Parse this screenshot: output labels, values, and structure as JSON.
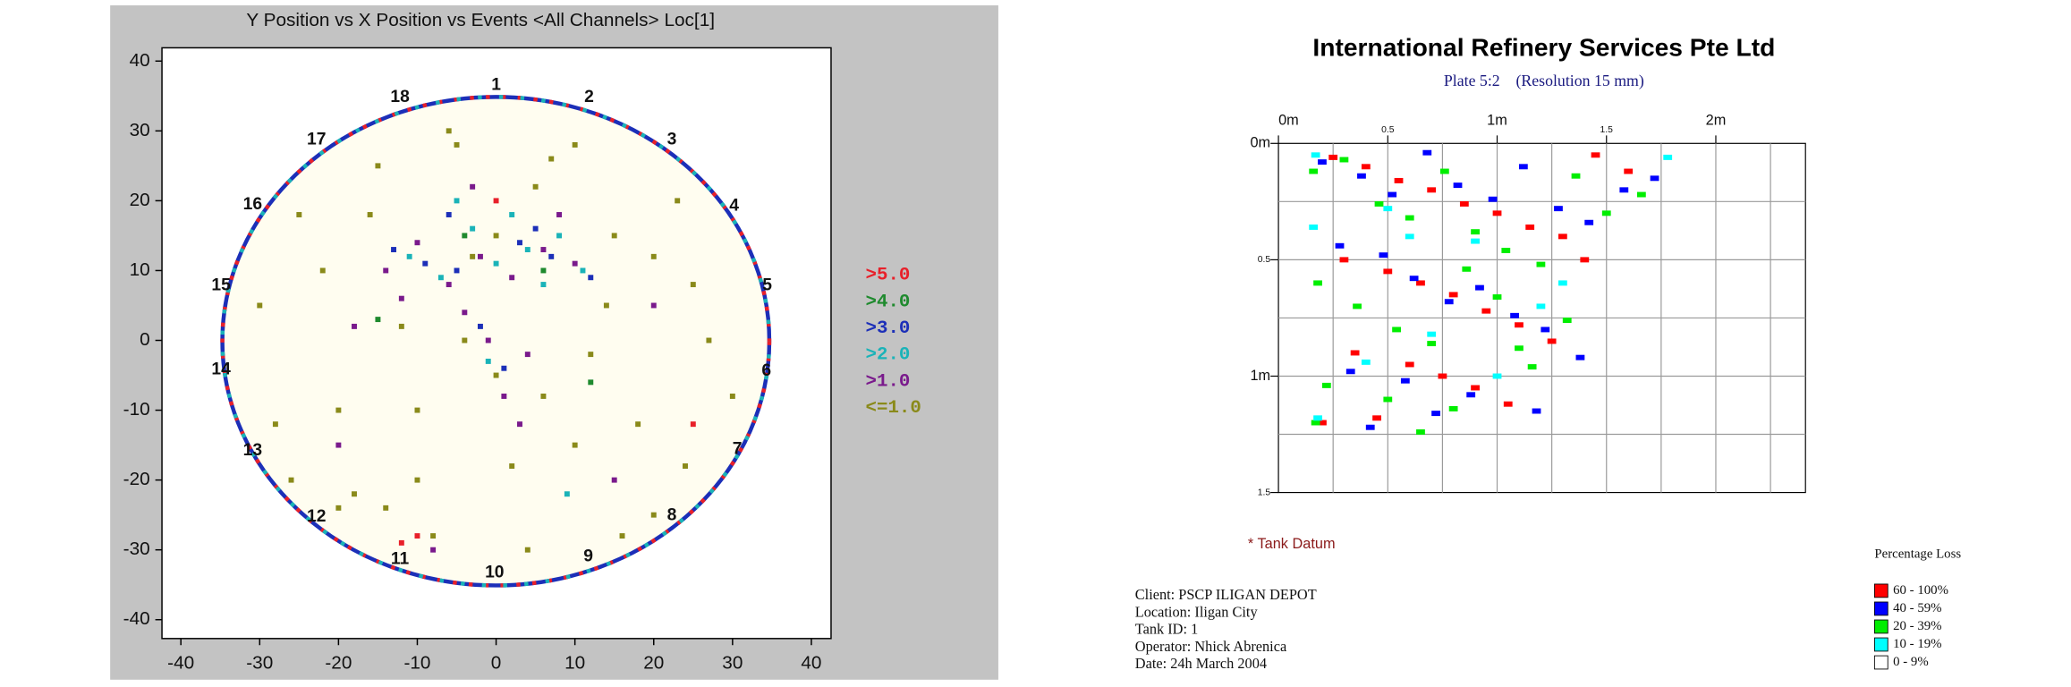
{
  "chart_data": [
    {
      "type": "scatter",
      "title": "Y Position vs X Position vs Events <All Channels> Loc[1]",
      "xlim": [
        -42.4,
        42.5
      ],
      "ylim": [
        -42.7,
        41.9
      ],
      "xticks": [
        -40,
        -30,
        -20,
        -10,
        0,
        10,
        20,
        30,
        40
      ],
      "yticks": [
        -40,
        -30,
        -20,
        -10,
        0,
        10,
        20,
        30,
        40
      ],
      "series": [
        {
          "name": ">5.0",
          "color": "#e8202a",
          "x": [
            -10,
            -12,
            25,
            0
          ],
          "y": [
            -28,
            -29,
            -12,
            20
          ]
        },
        {
          "name": ">4.0",
          "color": "#1f8a2e",
          "x": [
            -4,
            6,
            -15,
            12
          ],
          "y": [
            15,
            10,
            3,
            -6
          ]
        },
        {
          "name": ">3.0",
          "color": "#1c2fb8",
          "x": [
            -13,
            -9,
            -5,
            3,
            7,
            12,
            -2,
            1,
            5,
            -6
          ],
          "y": [
            13,
            11,
            10,
            14,
            12,
            9,
            2,
            -4,
            16,
            18
          ]
        },
        {
          "name": ">2.0",
          "color": "#1ab3b8",
          "x": [
            -11,
            -7,
            -3,
            0,
            4,
            8,
            11,
            -5,
            2,
            6,
            -1,
            9
          ],
          "y": [
            12,
            9,
            16,
            11,
            13,
            15,
            10,
            20,
            18,
            8,
            -3,
            -22
          ]
        },
        {
          "name": ">1.0",
          "color": "#7a1a8c",
          "x": [
            -14,
            -10,
            -6,
            -2,
            2,
            6,
            10,
            -12,
            -4,
            4,
            -1,
            1,
            -20,
            15,
            -8,
            3,
            20,
            -18,
            8,
            -3
          ],
          "y": [
            10,
            14,
            8,
            12,
            9,
            13,
            11,
            6,
            4,
            -2,
            0,
            -8,
            -15,
            -20,
            -30,
            -12,
            5,
            2,
            18,
            22
          ]
        },
        {
          "name": "<=1.0",
          "color": "#8a8a1a",
          "x": [
            -30,
            -25,
            -20,
            -15,
            -10,
            -5,
            0,
            5,
            10,
            15,
            20,
            25,
            30,
            -28,
            -22,
            -18,
            -12,
            -8,
            -3,
            2,
            7,
            12,
            18,
            23,
            27,
            -26,
            -16,
            -6,
            4,
            14,
            24,
            -20,
            -10,
            0,
            10,
            20,
            -14,
            6,
            16,
            -4
          ],
          "y": [
            5,
            18,
            -10,
            25,
            -20,
            28,
            -5,
            22,
            -15,
            15,
            -25,
            8,
            -8,
            -12,
            10,
            -22,
            2,
            -28,
            12,
            -18,
            26,
            -2,
            -12,
            20,
            0,
            -20,
            18,
            30,
            -30,
            5,
            -18,
            -24,
            -10,
            15,
            28,
            12,
            -24,
            -8,
            -28,
            0
          ]
        }
      ],
      "annotations": [
        {
          "text": "1",
          "x": 0,
          "y": 36.5
        },
        {
          "text": "2",
          "x": 11.8,
          "y": 34.8
        },
        {
          "text": "3",
          "x": 22.3,
          "y": 28.7
        },
        {
          "text": "4",
          "x": 30.2,
          "y": 19.2
        },
        {
          "text": "5",
          "x": 34.4,
          "y": 7.8
        },
        {
          "text": "6",
          "x": 34.3,
          "y": -4.4
        },
        {
          "text": "7",
          "x": 30.6,
          "y": -15.6
        },
        {
          "text": "8",
          "x": 22.3,
          "y": -25.1
        },
        {
          "text": "9",
          "x": 11.7,
          "y": -31
        },
        {
          "text": "10",
          "x": -0.2,
          "y": -33.3
        },
        {
          "text": "11",
          "x": -12.2,
          "y": -31.4
        },
        {
          "text": "12",
          "x": -22.8,
          "y": -25.3
        },
        {
          "text": "13",
          "x": -30.9,
          "y": -15.8
        },
        {
          "text": "14",
          "x": -34.9,
          "y": -4.2
        },
        {
          "text": "15",
          "x": -34.9,
          "y": 7.8
        },
        {
          "text": "16",
          "x": -30.9,
          "y": 19.4
        },
        {
          "text": "17",
          "x": -22.8,
          "y": 28.7
        },
        {
          "text": "18",
          "x": -12.2,
          "y": 34.8
        }
      ]
    },
    {
      "type": "heatmap",
      "title": "International Refinery Services Pte Ltd",
      "subtitle": "Plate 5:2    (Resolution 15 mm)",
      "xlim": [
        0,
        2.41
      ],
      "ylim": [
        0,
        1.5
      ],
      "y_reversed": true,
      "xticks": [
        {
          "value": 0,
          "label": "0m"
        },
        0.5,
        {
          "value": 1,
          "label": "1m"
        },
        1.5,
        {
          "value": 2,
          "label": "2m"
        }
      ],
      "yticks": [
        {
          "value": 0,
          "label": "0m"
        },
        0.5,
        {
          "value": 1,
          "label": "1m"
        },
        1.5
      ],
      "xgrid": [
        0.25,
        0.5,
        0.75,
        1,
        1.25,
        1.5,
        1.75,
        2,
        2.25
      ],
      "ygrid": [
        0.25,
        0.5,
        0.75,
        1,
        1.25
      ],
      "note": "* Tank Datum",
      "info": [
        "Client: PSCP ILIGAN DEPOT",
        "Location: Iligan City",
        "Tank ID: 1",
        "Operator: Nhick Abrenica",
        "Date: 24h March 2004"
      ],
      "legend_title": "Percentage Loss",
      "series": [
        {
          "name": "60 - 100%",
          "color": "#ff0000",
          "x": [
            0.25,
            0.4,
            0.55,
            0.7,
            0.85,
            1.0,
            1.15,
            1.3,
            1.45,
            1.6,
            0.3,
            0.5,
            0.65,
            0.8,
            0.95,
            1.1,
            1.25,
            1.4,
            0.35,
            0.6,
            0.75,
            0.9,
            1.05,
            0.2,
            0.45
          ],
          "y": [
            0.06,
            0.1,
            0.16,
            0.2,
            0.26,
            0.3,
            0.36,
            0.4,
            0.05,
            0.12,
            0.5,
            0.55,
            0.6,
            0.65,
            0.72,
            0.78,
            0.85,
            0.5,
            0.9,
            0.95,
            1.0,
            1.05,
            1.12,
            1.2,
            1.18
          ]
        },
        {
          "name": "40 - 59%",
          "color": "#0000ff",
          "x": [
            0.2,
            0.38,
            0.52,
            0.68,
            0.82,
            0.98,
            1.12,
            1.28,
            1.42,
            1.58,
            1.72,
            0.28,
            0.48,
            0.62,
            0.78,
            0.92,
            1.08,
            1.22,
            1.38,
            0.33,
            0.58,
            0.88,
            1.18,
            0.42,
            0.72
          ],
          "y": [
            0.08,
            0.14,
            0.22,
            0.04,
            0.18,
            0.24,
            0.1,
            0.28,
            0.34,
            0.2,
            0.15,
            0.44,
            0.48,
            0.58,
            0.68,
            0.62,
            0.74,
            0.8,
            0.92,
            0.98,
            1.02,
            1.08,
            1.15,
            1.22,
            1.16
          ]
        },
        {
          "name": "20 - 39%",
          "color": "#00ee00",
          "x": [
            0.16,
            0.3,
            0.46,
            0.6,
            0.76,
            0.9,
            1.04,
            1.2,
            1.36,
            1.5,
            1.66,
            0.18,
            0.36,
            0.54,
            0.7,
            0.86,
            1.0,
            1.16,
            1.32,
            0.22,
            0.5,
            0.8,
            1.1,
            0.17,
            0.65
          ],
          "y": [
            0.12,
            0.07,
            0.26,
            0.32,
            0.12,
            0.38,
            0.46,
            0.52,
            0.14,
            0.3,
            0.22,
            0.6,
            0.7,
            0.8,
            0.86,
            0.54,
            0.66,
            0.96,
            0.76,
            1.04,
            1.1,
            1.14,
            0.88,
            1.2,
            1.24
          ]
        },
        {
          "name": "10 - 19%",
          "color": "#00ffff",
          "x": [
            0.17,
            0.5,
            0.9,
            1.3,
            1.78,
            0.16,
            0.7,
            1.2,
            0.4,
            1.0,
            0.18,
            0.6
          ],
          "y": [
            0.05,
            0.28,
            0.42,
            0.6,
            0.06,
            0.36,
            0.82,
            0.7,
            0.94,
            1.0,
            1.18,
            0.4
          ]
        },
        {
          "name": "0 - 9%",
          "color": "#ffffff",
          "x": [],
          "y": []
        }
      ]
    }
  ]
}
